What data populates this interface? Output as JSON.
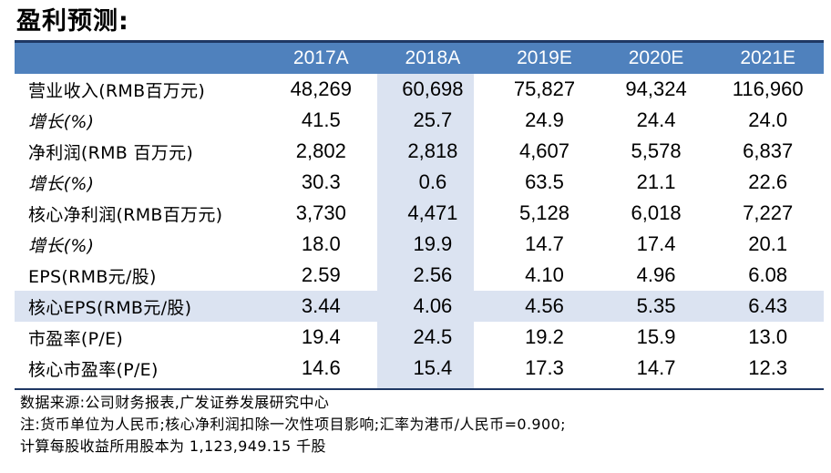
{
  "title": "盈利预测:",
  "colors": {
    "header_bg": "#4f81bd",
    "header_text": "#ffffff",
    "highlight_bg": "#dbe3f1",
    "rule": "#1f3864"
  },
  "header": [
    "",
    "2017A",
    "2018A",
    "2019E",
    "2020E",
    "2021E"
  ],
  "highlight_column": 1,
  "rows": [
    {
      "label": "营业收入(RMB百万元)",
      "italic": false,
      "values": [
        "48,269",
        "60,698",
        "75,827",
        "94,324",
        "116,960"
      ]
    },
    {
      "label": "增长(%)",
      "italic": true,
      "values": [
        "41.5",
        "25.7",
        "24.9",
        "24.4",
        "24.0"
      ]
    },
    {
      "label": "净利润(RMB 百万元)",
      "italic": false,
      "values": [
        "2,802",
        "2,818",
        "4,607",
        "5,578",
        "6,837"
      ]
    },
    {
      "label": "增长(%)",
      "italic": true,
      "values": [
        "30.3",
        "0.6",
        "63.5",
        "21.1",
        "22.6"
      ]
    },
    {
      "label": "核心净利润(RMB百万元)",
      "italic": false,
      "values": [
        "3,730",
        "4,471",
        "5,128",
        "6,018",
        "7,227"
      ]
    },
    {
      "label": "增长(%)",
      "italic": true,
      "values": [
        "18.0",
        "19.9",
        "14.7",
        "17.4",
        "20.1"
      ]
    },
    {
      "label": "EPS(RMB元/股)",
      "italic": false,
      "values": [
        "2.59",
        "2.56",
        "4.10",
        "4.96",
        "6.08"
      ]
    },
    {
      "label": "核心EPS(RMB元/股)",
      "italic": false,
      "highlight": true,
      "values": [
        "3.44",
        "4.06",
        "4.56",
        "5.35",
        "6.43"
      ]
    },
    {
      "label": "市盈率(P/E)",
      "italic": false,
      "values": [
        "19.4",
        "24.5",
        "19.2",
        "15.9",
        "13.0"
      ]
    },
    {
      "label": "核心市盈率(P/E)",
      "italic": false,
      "values": [
        "14.6",
        "15.4",
        "17.3",
        "14.7",
        "12.3"
      ]
    }
  ],
  "notes": [
    "数据来源:公司财务报表,广发证券发展研究中心",
    "注:货币单位为人民币;核心净利润扣除一次性项目影响;汇率为港币/人民币=0.900;",
    "计算每股收益所用股本为 1,123,949.15 千股"
  ]
}
